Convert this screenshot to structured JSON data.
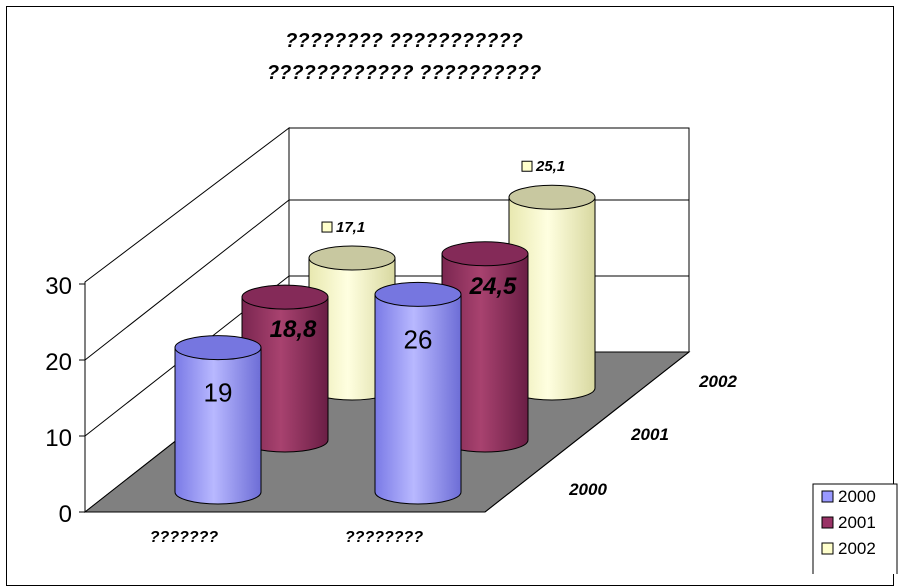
{
  "chart_data": {
    "type": "bar",
    "subtype": "3d-cylinder",
    "title_lines": [
      "???????? ???????????",
      "???????????? ??????????"
    ],
    "categories": [
      "???????",
      "????????"
    ],
    "depth_labels": [
      "2000",
      "2001",
      "2002"
    ],
    "series": [
      {
        "name": "2000",
        "color": "#9999ff",
        "values": [
          19,
          26
        ],
        "data_labels": [
          "19",
          "26"
        ]
      },
      {
        "name": "2001",
        "color": "#993366",
        "values": [
          18.8,
          24.5
        ],
        "data_labels": [
          "18,8",
          "24,5"
        ]
      },
      {
        "name": "2002",
        "color": "#ffffcc",
        "values": [
          17.1,
          25.1
        ],
        "data_labels": [
          "17,1",
          "25,1"
        ]
      }
    ],
    "yticks": [
      "0",
      "10",
      "20",
      "30"
    ],
    "ylim": [
      0,
      30
    ],
    "legend": {
      "position": "bottom-right",
      "entries": [
        "2000",
        "2001",
        "2002"
      ]
    },
    "floor_color": "#808080",
    "grid": true
  }
}
